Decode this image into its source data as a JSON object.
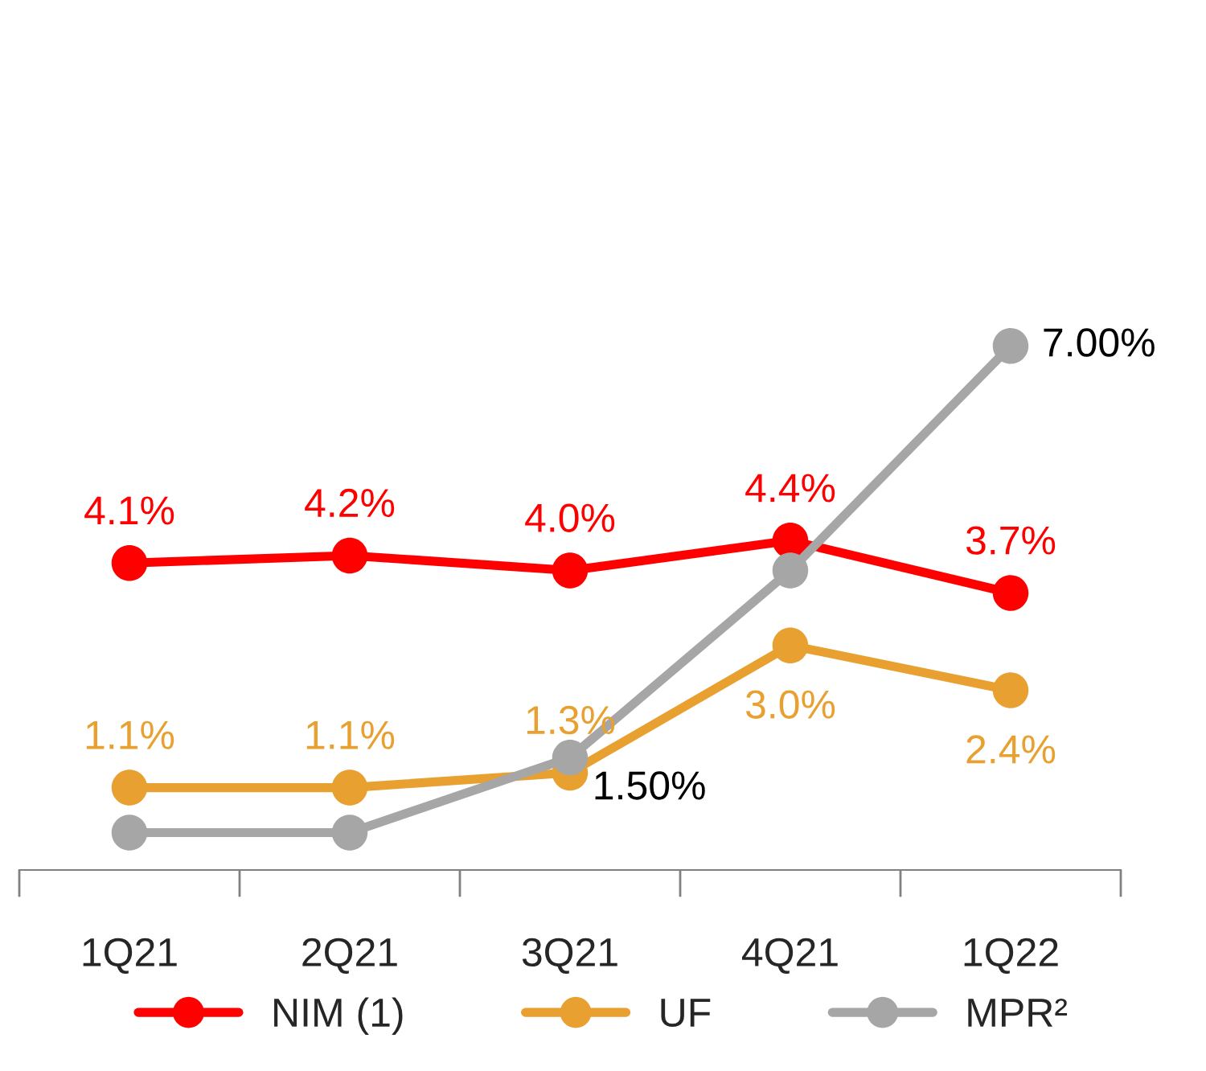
{
  "chart_data": {
    "type": "line",
    "categories": [
      "1Q21",
      "2Q21",
      "3Q21",
      "4Q21",
      "1Q22"
    ],
    "marker": "circle",
    "line_style": "solid",
    "legend": "bottom",
    "grid": false,
    "tick_labels": "x",
    "series": [
      {
        "name": "NIM (1)",
        "color": "#ff0000",
        "values": [
          4.1,
          4.2,
          4.0,
          4.4,
          3.7
        ],
        "value_labels": [
          "4.1%",
          "4.2%",
          "4.0%",
          "4.4%",
          "3.7%"
        ]
      },
      {
        "name": "UF",
        "color": "#e8a030",
        "values": [
          1.1,
          1.1,
          1.3,
          3.0,
          2.4
        ],
        "value_labels": [
          "1.1%",
          "1.1%",
          "1.3%",
          "3.0%",
          "2.4%"
        ]
      },
      {
        "name": "MPR²",
        "color": "#a6a6a6",
        "values": [
          0.5,
          0.5,
          1.5,
          4.0,
          7.0
        ],
        "value_labels": [
          null,
          null,
          "1.50%",
          null,
          "7.00%"
        ]
      }
    ]
  }
}
